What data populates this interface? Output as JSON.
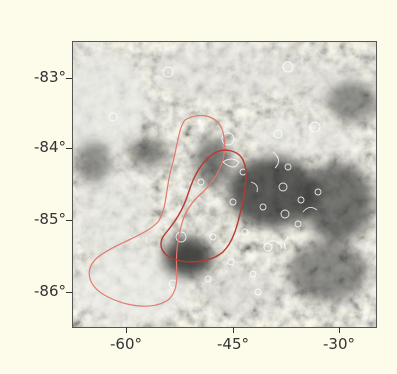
{
  "map": {
    "y_ticks": [
      "-83°",
      "-84°",
      "-85°",
      "-86°"
    ],
    "x_ticks": [
      "-60°",
      "-45°",
      "-30°"
    ],
    "colors": {
      "background": "#fdfbea",
      "outer_contour": "#e07070",
      "inner_contour": "#b03030",
      "crater_outline": "#ffffff"
    }
  }
}
